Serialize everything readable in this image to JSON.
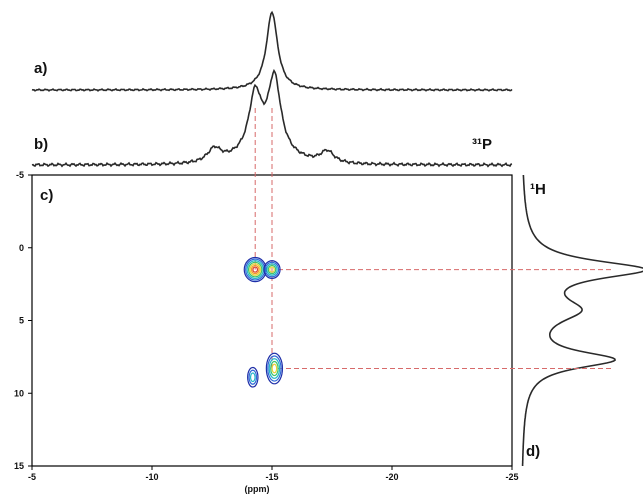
{
  "chart_data": {
    "type": "contour",
    "panel_labels": {
      "a": "a)",
      "b": "b)",
      "c": "c)",
      "d": "d)"
    },
    "nucleus_x": "³¹P",
    "nucleus_y": "¹H",
    "xlabel": "(ppm)",
    "xlim": [
      -5,
      -25
    ],
    "ylim": [
      -5,
      15
    ],
    "x_ticks": [
      "-5",
      "-10",
      "-15",
      "-20",
      "-25"
    ],
    "y_ticks": [
      "-5",
      "0",
      "5",
      "10",
      "15"
    ],
    "trace_a": {
      "peaks": [
        {
          "x": -15.0,
          "height": 1.0
        }
      ]
    },
    "trace_b": {
      "peaks": [
        {
          "x": -14.3,
          "height": 0.78
        },
        {
          "x": -15.1,
          "height": 1.0
        },
        {
          "x": -12.6,
          "height": 0.18
        },
        {
          "x": -17.3,
          "height": 0.16
        }
      ]
    },
    "trace_d": {
      "peaks": [
        {
          "y": 1.5,
          "height": 1.0
        },
        {
          "y": 4.3,
          "height": 0.42
        },
        {
          "y": 7.7,
          "height": 0.75
        }
      ]
    },
    "cross_peaks": [
      {
        "x": -14.3,
        "y": 1.5,
        "intensity": "high"
      },
      {
        "x": -15.0,
        "y": 1.5,
        "intensity": "medium"
      },
      {
        "x": -15.1,
        "y": 8.3,
        "intensity": "medium"
      },
      {
        "x": -14.2,
        "y": 8.9,
        "intensity": "low"
      }
    ],
    "guides": {
      "x": [
        -14.3,
        -15.0
      ],
      "y": [
        1.5,
        8.3
      ]
    },
    "colors": {
      "trace": "#2a2a2a",
      "guide": "#d76a6a",
      "contours": [
        "#1f2fa8",
        "#2f6ad8",
        "#23b7c9",
        "#3cc46a",
        "#e7d23a",
        "#f39a2c",
        "#d83a2a"
      ]
    }
  }
}
